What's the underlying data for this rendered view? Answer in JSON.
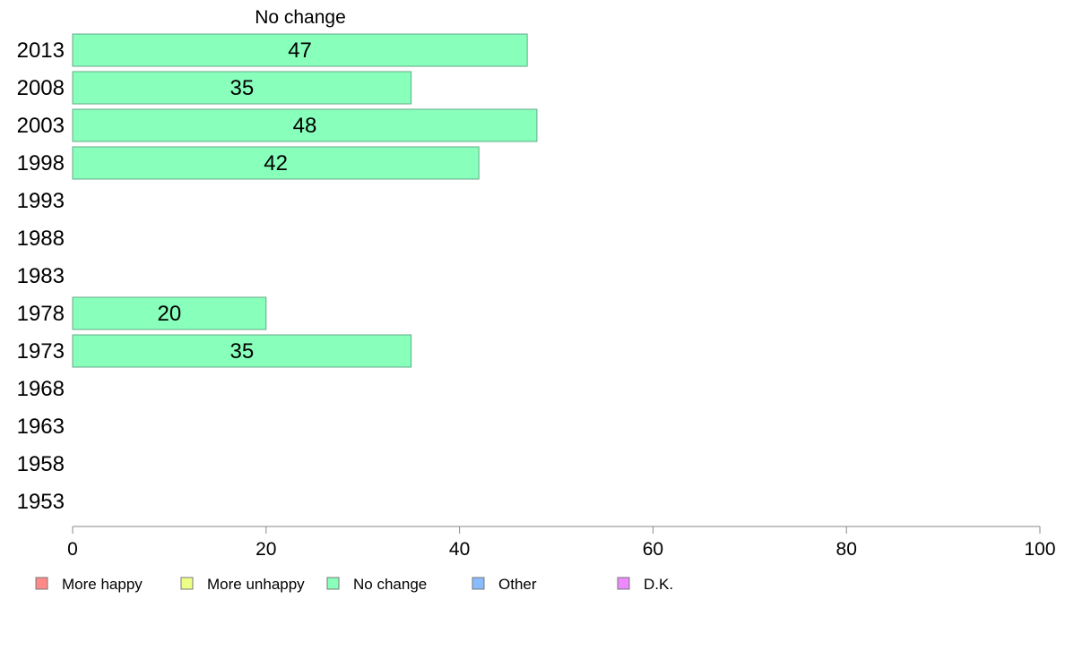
{
  "chart_data": {
    "type": "bar",
    "orientation": "horizontal",
    "title": "No change",
    "categories": [
      "2013",
      "2008",
      "2003",
      "1998",
      "1993",
      "1988",
      "1983",
      "1978",
      "1973",
      "1968",
      "1963",
      "1958",
      "1953"
    ],
    "series": [
      {
        "name": "No change",
        "color": "#88ffbb",
        "values": [
          47,
          35,
          48,
          42,
          null,
          null,
          null,
          20,
          35,
          null,
          null,
          null,
          null
        ]
      }
    ],
    "data_labels": [
      "47",
      "35",
      "48",
      "42",
      "",
      "",
      "",
      "20",
      "35",
      "",
      "",
      "",
      ""
    ],
    "xlim": [
      0,
      100
    ],
    "xticks": [
      0,
      20,
      40,
      60,
      80,
      100
    ],
    "xlabel": "",
    "ylabel": "",
    "grid": false,
    "legend": {
      "placement": "bottom",
      "entries": [
        {
          "label": "More happy",
          "color": "#ff8888"
        },
        {
          "label": "More unhappy",
          "color": "#eeff88"
        },
        {
          "label": "No change",
          "color": "#88ffbb"
        },
        {
          "label": "Other",
          "color": "#88bbff"
        },
        {
          "label": "D.K.",
          "color": "#ee88ff"
        }
      ]
    }
  }
}
